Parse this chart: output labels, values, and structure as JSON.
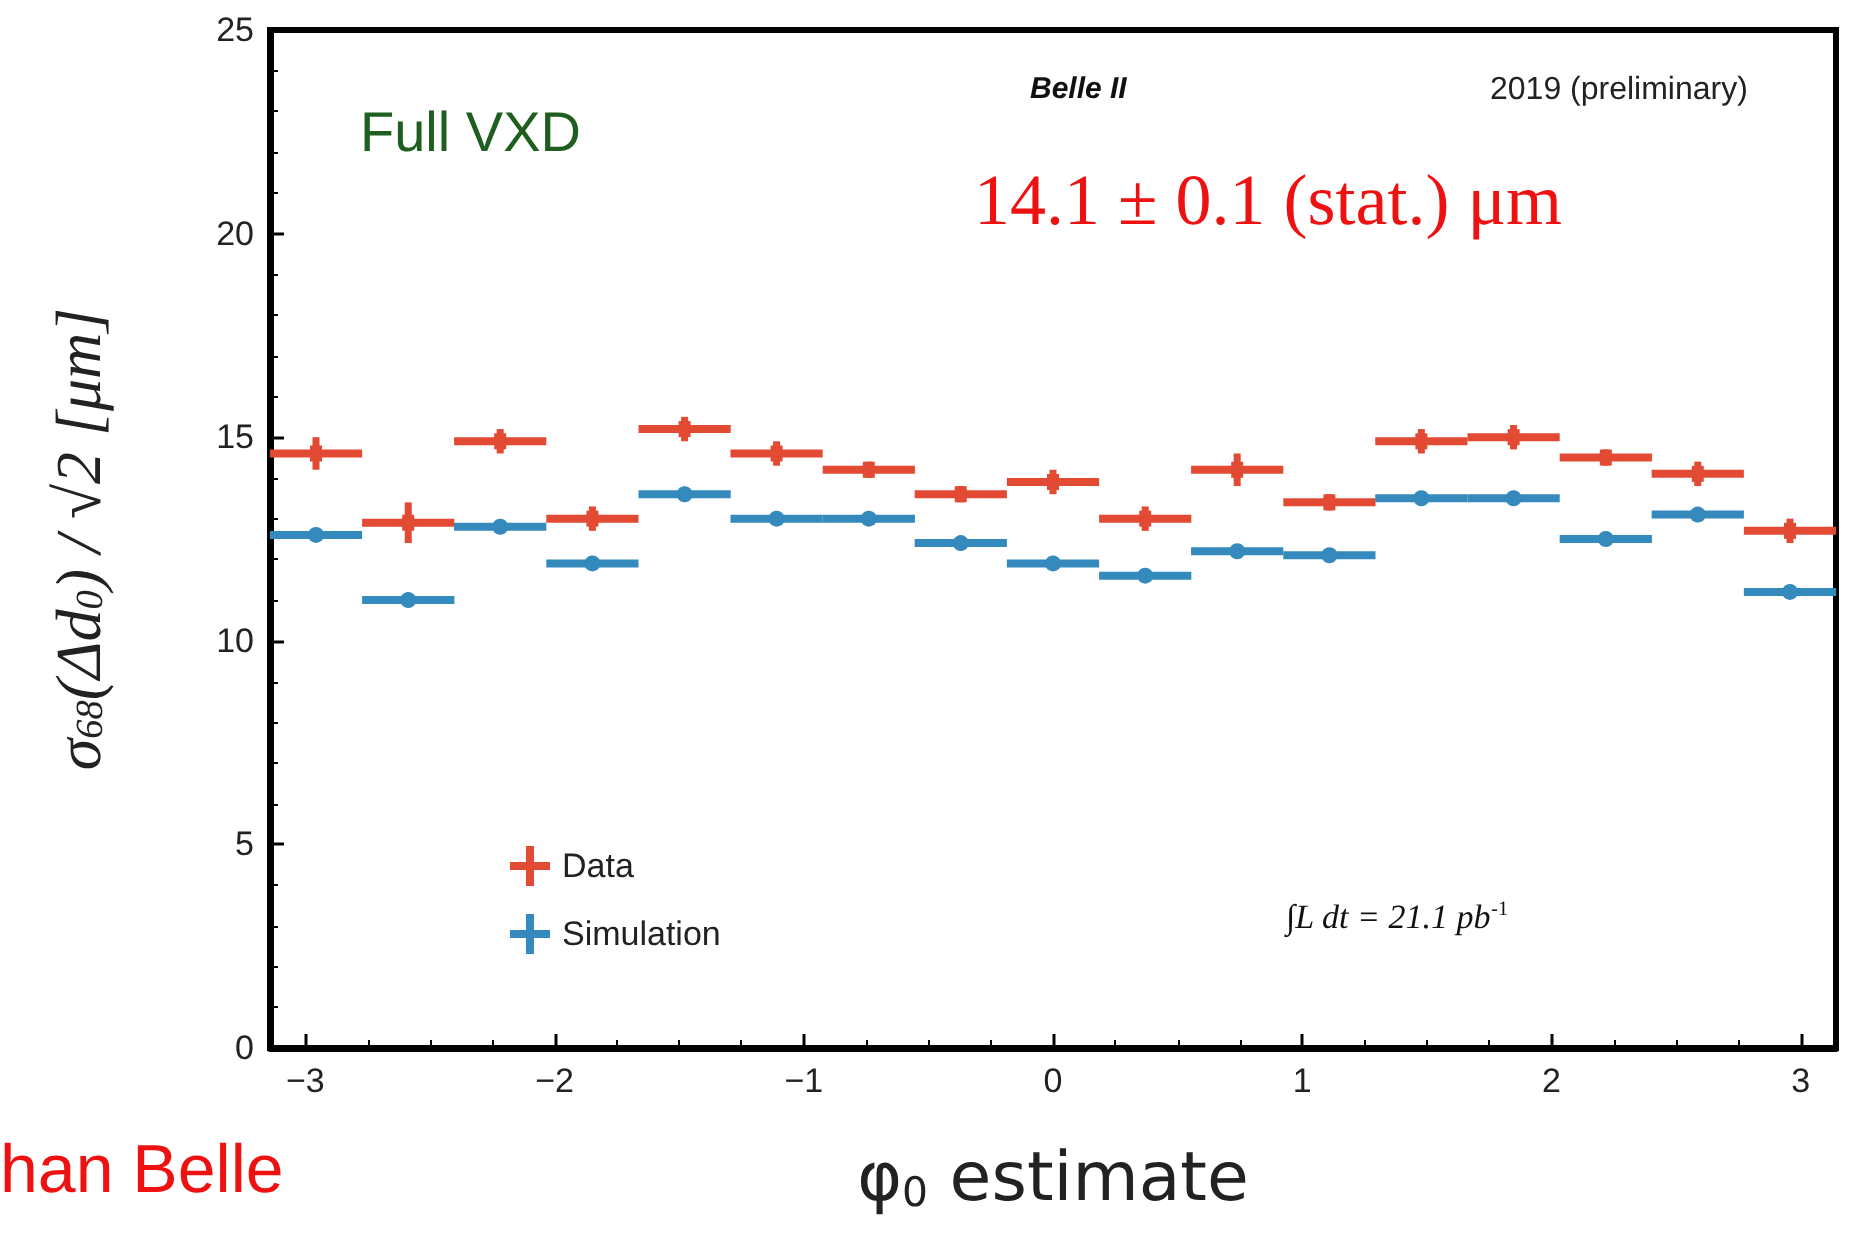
{
  "chart_data": {
    "type": "scatter",
    "xlabel": "φ$_{0}$ estimate",
    "ylabel": "σ$_{68}$(Δd$_{0}$) / √2 [μm]",
    "x": [
      -2.957,
      -2.587,
      -2.218,
      -1.848,
      -1.478,
      -1.109,
      -0.739,
      -0.37,
      0,
      0.37,
      0.739,
      1.109,
      1.478,
      1.848,
      2.218,
      2.587,
      2.957
    ],
    "series": [
      {
        "name": "Data",
        "color": "#e24a33",
        "marker": "square",
        "values": [
          14.6,
          12.9,
          14.9,
          13.0,
          15.2,
          14.6,
          14.2,
          13.6,
          13.9,
          13.0,
          14.2,
          13.4,
          14.9,
          15.0,
          14.5,
          14.1,
          12.7
        ],
        "errors": [
          0.4,
          0.5,
          0.3,
          0.3,
          0.3,
          0.3,
          0.2,
          0.2,
          0.3,
          0.3,
          0.4,
          0.2,
          0.3,
          0.3,
          0.2,
          0.3,
          0.3
        ],
        "xerrors": [
          0.185,
          0.185,
          0.185,
          0.185,
          0.185,
          0.185,
          0.185,
          0.185,
          0.185,
          0.185,
          0.185,
          0.185,
          0.185,
          0.185,
          0.185,
          0.185,
          0.185
        ]
      },
      {
        "name": "Simulation",
        "color": "#348abd",
        "marker": "circle",
        "values": [
          12.6,
          11.0,
          12.8,
          11.9,
          13.6,
          13.0,
          13.0,
          12.4,
          11.9,
          11.6,
          12.2,
          12.1,
          13.5,
          13.5,
          12.5,
          13.1,
          11.2
        ],
        "errors": [
          0.1,
          0.1,
          0.1,
          0.1,
          0.1,
          0.1,
          0.1,
          0.1,
          0.1,
          0.1,
          0.1,
          0.1,
          0.1,
          0.1,
          0.1,
          0.1,
          0.1
        ],
        "xerrors": [
          0.185,
          0.185,
          0.185,
          0.185,
          0.185,
          0.185,
          0.185,
          0.185,
          0.185,
          0.185,
          0.185,
          0.185,
          0.185,
          0.185,
          0.185,
          0.185,
          0.185
        ]
      }
    ],
    "xlim": [
      -3.1416,
      3.1416
    ],
    "xticks": [
      -3,
      -2,
      -1,
      0,
      1,
      2,
      3
    ],
    "ylim": [
      0,
      25
    ],
    "yticks": [
      0,
      5,
      10,
      15,
      20,
      25
    ],
    "grid": false,
    "legend": "bottom left",
    "annotations": [
      "Full VXD",
      "Belle II",
      "2019 (preliminary)",
      "14.1 ± 0.1 (stat.) μm",
      "∫L dt = 21.1 pb$^{-1}$",
      "han Belle"
    ]
  }
}
